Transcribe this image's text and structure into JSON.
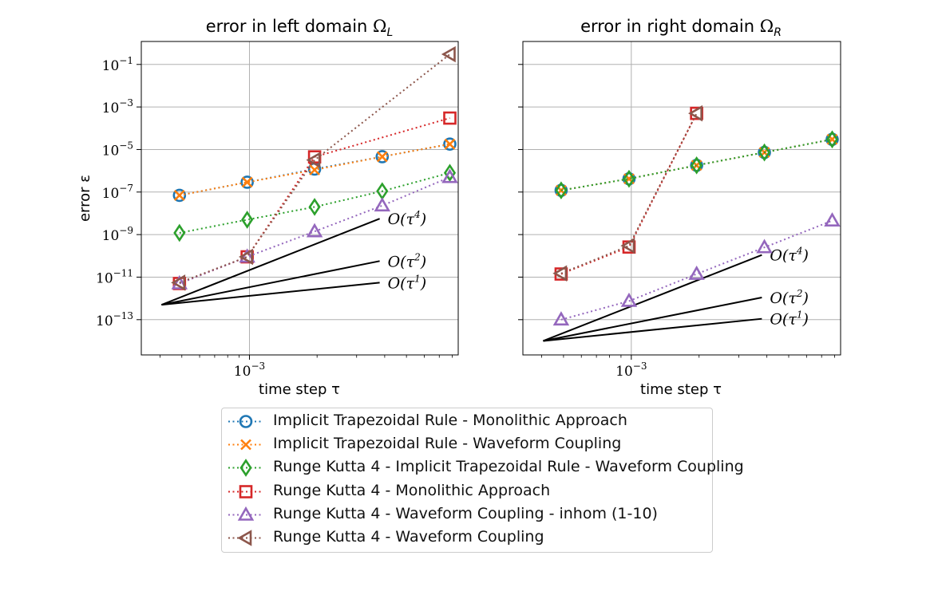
{
  "chart_data": [
    {
      "type": "line",
      "title": "error in left domain ",
      "title_symbol": "ΩL",
      "xlabel": "time step τ",
      "ylabel": "error ε",
      "xscale": "log",
      "yscale": "log",
      "xlim": [
        0.00033,
        0.0085
      ],
      "ylim": [
        2.2e-15,
        1.2
      ],
      "x_tick_labels": [
        "10−3"
      ],
      "y_tick_labels": [
        "10−1",
        "10−3",
        "10−5",
        "10−7",
        "10−9",
        "10−11",
        "10−13"
      ],
      "grid": true,
      "series": [
        {
          "name": "Implicit Trapezoidal Rule - Monolithic Approach",
          "color": "#1f77b4",
          "marker": "circle",
          "x": [
            0.000488,
            0.000977,
            0.00195,
            0.0039,
            0.0078
          ],
          "y": [
            7e-08,
            2.9e-07,
            1.2e-06,
            4.6e-06,
            1.8e-05
          ]
        },
        {
          "name": "Implicit Trapezoidal Rule - Waveform Coupling",
          "color": "#ff7f0e",
          "marker": "x",
          "x": [
            0.000488,
            0.000977,
            0.00195,
            0.0039,
            0.0078
          ],
          "y": [
            7e-08,
            2.9e-07,
            1.1e-06,
            4.6e-06,
            1.8e-05
          ]
        },
        {
          "name": "Runge Kutta 4 - Implicit Trapezoidal Rule - Waveform Coupling",
          "color": "#2ca02c",
          "marker": "diamond",
          "x": [
            0.000488,
            0.000977,
            0.00195,
            0.0039,
            0.0078
          ],
          "y": [
            1.2e-09,
            5e-09,
            2e-08,
            1.1e-07,
            8e-07
          ]
        },
        {
          "name": "Runge Kutta 4 - Monolithic Approach",
          "color": "#d62728",
          "marker": "square",
          "x": [
            0.000488,
            0.000977,
            0.00195,
            0.0039,
            0.0078
          ],
          "y": [
            5e-12,
            9e-11,
            4.5e-06,
            null,
            0.0003
          ]
        },
        {
          "name": "Runge Kutta 4 - Waveform Coupling - inhom (1-10)",
          "color": "#9467bd",
          "marker": "triangle-up",
          "x": [
            0.000488,
            0.000977,
            0.00195,
            0.0039,
            0.0078
          ],
          "y": [
            5e-12,
            9e-11,
            1.4e-09,
            2.3e-08,
            5e-07
          ]
        },
        {
          "name": "Runge Kutta 4 - Waveform Coupling",
          "color": "#8c564b",
          "marker": "triangle-left",
          "x": [
            0.000488,
            0.000977,
            0.00195,
            0.0039,
            0.0078
          ],
          "y": [
            5.5e-12,
            9e-11,
            3.2e-06,
            null,
            0.3
          ]
        }
      ],
      "reference_lines": [
        {
          "label": "O(τ4)",
          "x": [
            0.000406,
            0.0038
          ],
          "y": [
            5e-13,
            5.6e-09
          ]
        },
        {
          "label": "O(τ2)",
          "x": [
            0.000406,
            0.0038
          ],
          "y": [
            5e-13,
            5.7e-11
          ]
        },
        {
          "label": "O(τ1)",
          "x": [
            0.000406,
            0.0038
          ],
          "y": [
            5e-13,
            5.5e-12
          ]
        }
      ]
    },
    {
      "type": "line",
      "title": "error in right domain ",
      "title_symbol": "ΩR",
      "xlabel": "time step τ",
      "xscale": "log",
      "yscale": "log",
      "xlim": [
        0.00033,
        0.0085
      ],
      "ylim": [
        2.2e-15,
        1.2
      ],
      "x_tick_labels": [
        "10−3"
      ],
      "grid": true,
      "series": [
        {
          "name": "Implicit Trapezoidal Rule - Monolithic Approach",
          "color": "#1f77b4",
          "marker": "circle",
          "x": [
            0.000488,
            0.000977,
            0.00195,
            0.0039,
            0.0078
          ],
          "y": [
            1.2e-07,
            4.2e-07,
            1.8e-06,
            7.3e-06,
            3e-05
          ]
        },
        {
          "name": "Implicit Trapezoidal Rule - Waveform Coupling",
          "color": "#ff7f0e",
          "marker": "x",
          "x": [
            0.000488,
            0.000977,
            0.00195,
            0.0039,
            0.0078
          ],
          "y": [
            1.2e-07,
            4.2e-07,
            1.8e-06,
            7.3e-06,
            3e-05
          ]
        },
        {
          "name": "Runge Kutta 4 - Implicit Trapezoidal Rule - Waveform Coupling",
          "color": "#2ca02c",
          "marker": "diamond",
          "x": [
            0.000488,
            0.000977,
            0.00195,
            0.0039,
            0.0078
          ],
          "y": [
            1.2e-07,
            4.2e-07,
            1.8e-06,
            7.3e-06,
            3e-05
          ]
        },
        {
          "name": "Runge Kutta 4 - Monolithic Approach",
          "color": "#d62728",
          "marker": "square",
          "x": [
            0.000488,
            0.000977,
            0.00195
          ],
          "y": [
            1.4e-11,
            2.6e-10,
            0.0005
          ]
        },
        {
          "name": "Runge Kutta 4 - Waveform Coupling - inhom (1-10)",
          "color": "#9467bd",
          "marker": "triangle-up",
          "x": [
            0.000488,
            0.000977,
            0.00195,
            0.0039,
            0.0078
          ],
          "y": [
            1e-13,
            7.5e-13,
            1.4e-11,
            2.5e-10,
            4.5e-09
          ]
        },
        {
          "name": "Runge Kutta 4 - Waveform Coupling",
          "color": "#8c564b",
          "marker": "triangle-left",
          "x": [
            0.000488,
            0.000977,
            0.00195
          ],
          "y": [
            1.5e-11,
            3e-10,
            0.0005
          ]
        }
      ],
      "reference_lines": [
        {
          "label": "O(τ4)",
          "x": [
            0.000406,
            0.0038
          ],
          "y": [
            1e-14,
            1.1e-10
          ]
        },
        {
          "label": "O(τ2)",
          "x": [
            0.000406,
            0.0038
          ],
          "y": [
            1e-14,
            1.1e-12
          ]
        },
        {
          "label": "O(τ1)",
          "x": [
            0.000406,
            0.0038
          ],
          "y": [
            1e-14,
            1.1e-13
          ]
        }
      ]
    }
  ],
  "legend": {
    "placement": "bottom-center",
    "entries": [
      {
        "label": "Implicit Trapezoidal Rule - Monolithic Approach",
        "color": "#1f77b4",
        "marker": "circle"
      },
      {
        "label": "Implicit Trapezoidal Rule - Waveform Coupling",
        "color": "#ff7f0e",
        "marker": "x"
      },
      {
        "label": "Runge Kutta 4 - Implicit Trapezoidal Rule - Waveform Coupling",
        "color": "#2ca02c",
        "marker": "diamond"
      },
      {
        "label": "Runge Kutta 4 - Monolithic Approach",
        "color": "#d62728",
        "marker": "square"
      },
      {
        "label": "Runge Kutta 4 - Waveform Coupling - inhom (1-10)",
        "color": "#9467bd",
        "marker": "triangle-up"
      },
      {
        "label": "Runge Kutta 4 - Waveform Coupling",
        "color": "#8c564b",
        "marker": "triangle-left"
      }
    ]
  }
}
